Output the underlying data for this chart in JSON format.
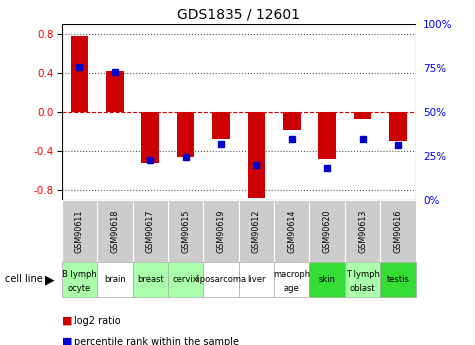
{
  "title": "GDS1835 / 12601",
  "samples": [
    "GSM90611",
    "GSM90618",
    "GSM90617",
    "GSM90615",
    "GSM90619",
    "GSM90612",
    "GSM90614",
    "GSM90620",
    "GSM90613",
    "GSM90616"
  ],
  "cell_lines": [
    "B lymph\nocyte",
    "brain",
    "breast",
    "cervix",
    "liposarcoma\n",
    "liver",
    "macroph\nage",
    "skin",
    "T lymph\noblast",
    "testis"
  ],
  "cell_line_colors": [
    "#aaffaa",
    "#ffffff",
    "#aaffaa",
    "#aaffaa",
    "#ffffff",
    "#ffffff",
    "#ffffff",
    "#00ee00",
    "#aaffaa",
    "#00ee00"
  ],
  "log2_ratio": [
    0.78,
    0.42,
    -0.52,
    -0.46,
    -0.28,
    -0.88,
    -0.18,
    -0.48,
    -0.07,
    -0.3
  ],
  "percentile_rank_y": [
    0.46,
    0.41,
    -0.49,
    -0.46,
    -0.33,
    -0.54,
    -0.27,
    -0.57,
    -0.28,
    -0.34
  ],
  "ylim": [
    -0.9,
    0.9
  ],
  "yticks_left": [
    -0.8,
    -0.4,
    0.0,
    0.4,
    0.8
  ],
  "yticks_right_labels": [
    "0%",
    "25%",
    "50%",
    "75%",
    "100%"
  ],
  "yticks_right_vals": [
    -0.9,
    -0.45,
    0.0,
    0.45,
    0.9
  ],
  "bar_color": "#cc0000",
  "dot_color": "#0000cc",
  "bg_color": "#ffffff",
  "zero_line_color": "#cc0000",
  "sample_bg_color": "#cccccc",
  "bar_width": 0.5
}
